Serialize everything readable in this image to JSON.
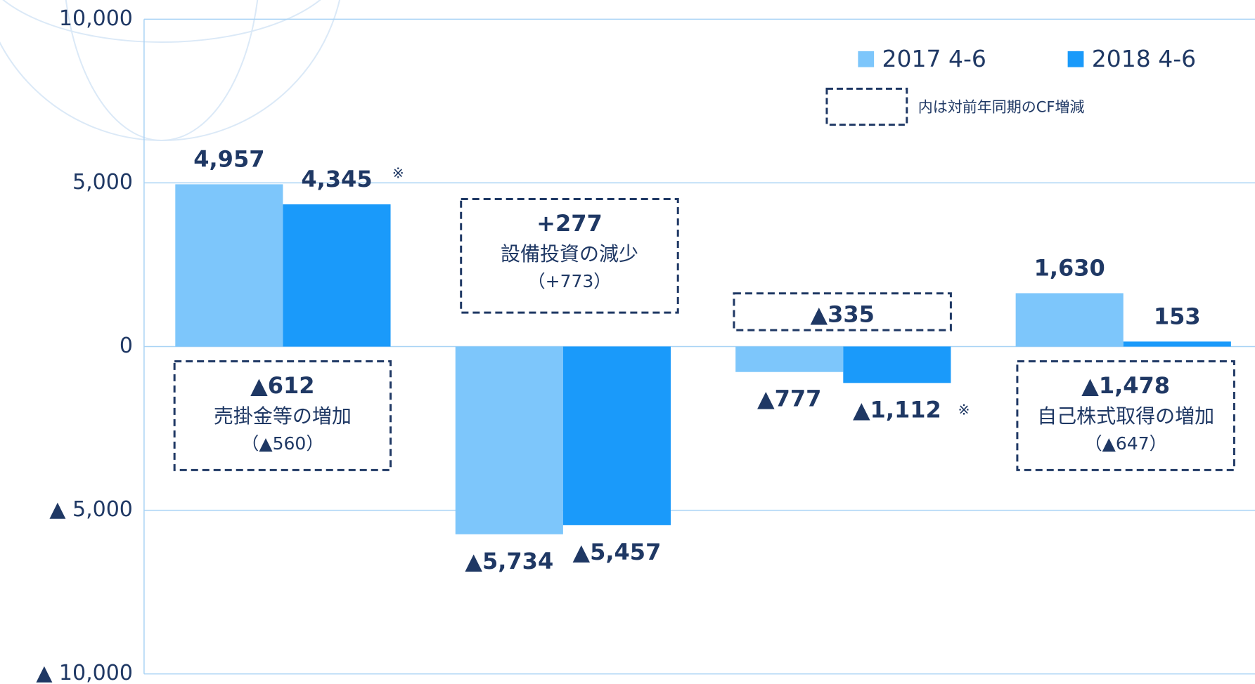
{
  "chart_data": {
    "type": "bar",
    "categories": [
      null,
      null,
      null,
      null
    ],
    "series": [
      {
        "name": "2017 4-6",
        "color": "#7dc6fb",
        "values": [
          4957,
          -5734,
          -777,
          1630
        ],
        "value_labels": [
          "4,957",
          "▲5,734",
          "▲777",
          "1,630"
        ]
      },
      {
        "name": "2018 4-6",
        "color": "#1a9afa",
        "values": [
          4345,
          -5457,
          -1112,
          153
        ],
        "value_labels": [
          "4,345",
          "▲5,457",
          "▲1,112",
          "153"
        ]
      }
    ],
    "ylim": [
      -10000,
      10000
    ],
    "yticks": [
      {
        "value": 10000,
        "label": "10,000"
      },
      {
        "value": 5000,
        "label": "5,000"
      },
      0,
      {
        "value": -5000,
        "label": "▲ 5,000"
      },
      {
        "value": -10000,
        "label": "▲ 10,000"
      }
    ],
    "grid": true,
    "legend": "top-right",
    "legend_note": "内は対前年同期のCF増減",
    "annotations": [
      {
        "lines": [
          "▲612",
          "売掛金等の増加",
          "（▲560）"
        ]
      },
      {
        "lines": [
          "+277",
          "設備投資の減少",
          "（+773）"
        ]
      },
      {
        "lines": [
          "▲335"
        ]
      },
      {
        "lines": [
          "▲1,478",
          "自己株式取得の増加",
          "（▲647）"
        ]
      }
    ],
    "footnote_marks": [
      "※",
      "※"
    ]
  }
}
